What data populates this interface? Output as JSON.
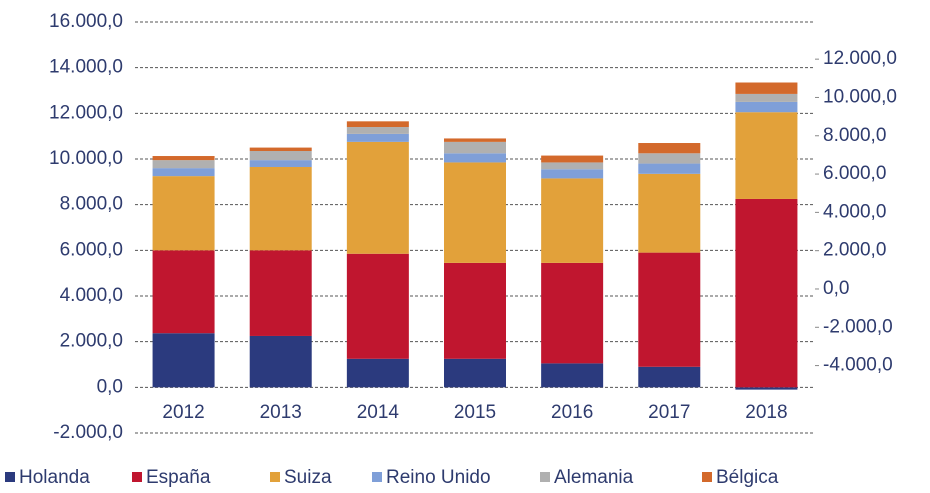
{
  "chart_data": {
    "type": "stacked_bar",
    "categories": [
      "2012",
      "2013",
      "2014",
      "2015",
      "2016",
      "2017",
      "2018"
    ],
    "series": [
      {
        "name": "Holanda",
        "color": "#2b3a7e",
        "values": [
          2370,
          2250,
          1250,
          1250,
          1050,
          900,
          -100
        ]
      },
      {
        "name": "España",
        "color": "#c0162f",
        "values": [
          3630,
          3750,
          4600,
          4200,
          4400,
          5000,
          8250
        ]
      },
      {
        "name": "Suiza",
        "color": "#e2a13a",
        "values": [
          3250,
          3650,
          4900,
          4400,
          3700,
          3450,
          3800
        ]
      },
      {
        "name": "Reino Unido",
        "color": "#7f9fd8",
        "values": [
          350,
          300,
          350,
          400,
          400,
          450,
          450
        ]
      },
      {
        "name": "Alemania",
        "color": "#b0b0b0",
        "values": [
          350,
          400,
          300,
          500,
          300,
          450,
          350
        ]
      },
      {
        "name": "Bélgica",
        "color": "#d3692b",
        "values": [
          180,
          150,
          250,
          150,
          300,
          450,
          500
        ]
      }
    ],
    "ylim": [
      -2000,
      16000
    ],
    "yticks": [
      {
        "value": -2000,
        "label": "-2.000,0"
      },
      {
        "value": 0,
        "label": "0,0"
      },
      {
        "value": 2000,
        "label": "2.000,0"
      },
      {
        "value": 4000,
        "label": "4.000,0"
      },
      {
        "value": 6000,
        "label": "6.000,0"
      },
      {
        "value": 8000,
        "label": "8.000,0"
      },
      {
        "value": 10000,
        "label": "10.000,0"
      },
      {
        "value": 12000,
        "label": "12.000,0"
      },
      {
        "value": 14000,
        "label": "14.000,0"
      },
      {
        "value": 16000,
        "label": "16.000,0"
      }
    ],
    "y2lim": [
      -7520,
      13940
    ],
    "y2ticks": [
      {
        "value": -4000,
        "label": "-4.000,0"
      },
      {
        "value": -2000,
        "label": "-2.000,0"
      },
      {
        "value": 0,
        "label": "0,0"
      },
      {
        "value": 2000,
        "label": "2.000,0"
      },
      {
        "value": 4000,
        "label": "4.000,0"
      },
      {
        "value": 6000,
        "label": "6.000,0"
      },
      {
        "value": 8000,
        "label": "8.000,0"
      },
      {
        "value": 10000,
        "label": "10.000,0"
      },
      {
        "value": 12000,
        "label": "12.000,0"
      }
    ],
    "grid": true
  }
}
